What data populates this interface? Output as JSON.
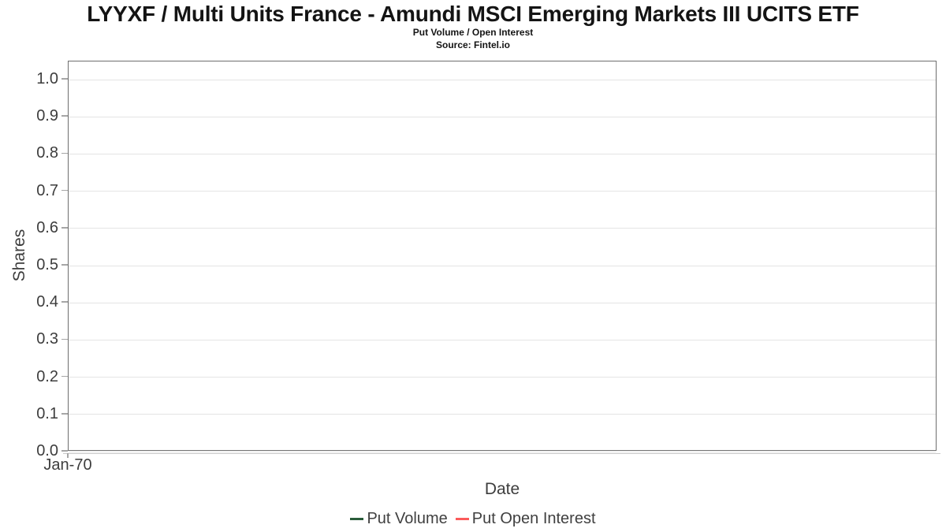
{
  "chart_data": {
    "type": "line",
    "title": "LYYXF / Multi Units France - Amundi MSCI Emerging Markets III UCITS ETF",
    "subtitle": "Put Volume / Open Interest",
    "source": "Source: Fintel.io",
    "xlabel": "Date",
    "ylabel": "Shares",
    "ylim": [
      0.0,
      1.05
    ],
    "yticks": [
      0.0,
      0.1,
      0.2,
      0.3,
      0.4,
      0.5,
      0.6,
      0.7,
      0.8,
      0.9,
      1.0
    ],
    "xtick_labels": [
      "Jan-70"
    ],
    "grid": "horizontal-only",
    "legend_position": "bottom-center",
    "series": [
      {
        "name": "Put Volume",
        "color": "#2a5c3a",
        "x": [],
        "values": []
      },
      {
        "name": "Put Open Interest",
        "color": "#fb5a5a",
        "x": [],
        "values": []
      }
    ]
  },
  "colors": {
    "background": "#ffffff",
    "plot_border": "#6e6e6e",
    "gridline": "#e4e4e4",
    "tick_mark": "#a6a6a6",
    "axis_line_light": "#c9c9c9",
    "title_text": "#141414",
    "tick_label_text": "#3d3d3d",
    "legend_text": "#404040",
    "put_volume": "#2a5c3a",
    "put_open_interest": "#fb5a5a"
  }
}
